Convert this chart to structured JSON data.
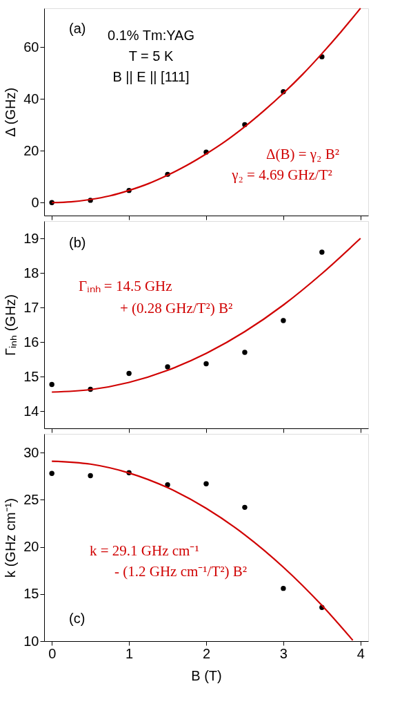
{
  "chart_data": [
    {
      "type": "scatter",
      "ylabel": "Δ (GHz)",
      "xlim": [
        -0.1,
        4.1
      ],
      "xticks": [
        0,
        1,
        2,
        3,
        4
      ],
      "ylim": [
        -5,
        75
      ],
      "yticks": [
        0,
        20,
        40,
        60
      ],
      "tick_labels": "y",
      "grid": false,
      "annotations": [
        "(a)",
        "0.1% Tm:YAG",
        "T = 5 K",
        "B || E || [111]",
        "Δ(B) = γ₂ B²",
        "γ₂ = 4.69 GHz/T²"
      ],
      "series": [
        {
          "color": "#000000",
          "marker": "circle",
          "x": [
            0,
            0.5,
            1,
            1.5,
            2,
            2.5,
            3,
            3.5
          ],
          "values": [
            0,
            0.9,
            4.7,
            10.9,
            19.5,
            30.1,
            42.8,
            56.3
          ]
        },
        {
          "type": "line",
          "color": "#d00000",
          "marker": "none",
          "line_style": "solid",
          "x": [
            0,
            0.25,
            0.5,
            0.75,
            1,
            1.25,
            1.5,
            1.75,
            2,
            2.25,
            2.5,
            2.75,
            3,
            3.25,
            3.5,
            3.75,
            4
          ],
          "values": [
            0,
            0.3,
            1.2,
            2.6,
            4.7,
            7.3,
            10.6,
            14.4,
            18.8,
            23.7,
            29.3,
            35.5,
            42.2,
            49.5,
            57.5,
            66.0,
            75.0
          ]
        }
      ]
    },
    {
      "type": "scatter",
      "ylabel": "Γᵢₙₕ (GHz)",
      "xlim": [
        -0.1,
        4.1
      ],
      "xticks": [
        0,
        1,
        2,
        3,
        4
      ],
      "ylim": [
        13.5,
        19.5
      ],
      "yticks": [
        14,
        15,
        16,
        17,
        18,
        19
      ],
      "tick_labels": "y",
      "grid": false,
      "annotations": [
        "(b)",
        "Γᵢₙₕ = 14.5 GHz",
        "+ (0.28 GHz/T²) B²"
      ],
      "series": [
        {
          "color": "#000000",
          "marker": "circle",
          "x": [
            0,
            0.5,
            1,
            1.5,
            2,
            2.5,
            3,
            3.5
          ],
          "values": [
            14.77,
            14.63,
            15.09,
            15.28,
            15.37,
            15.7,
            16.62,
            18.6
          ]
        },
        {
          "type": "line",
          "color": "#d00000",
          "marker": "none",
          "line_style": "solid",
          "x": [
            0,
            0.5,
            1,
            1.5,
            2,
            2.5,
            3,
            3.5,
            4
          ],
          "values": [
            14.55,
            14.62,
            14.83,
            15.18,
            15.67,
            16.3,
            17.07,
            17.98,
            19.0
          ]
        }
      ]
    },
    {
      "type": "scatter",
      "xlabel": "B (T)",
      "ylabel": "k (GHz cm⁻¹)",
      "xlim": [
        -0.1,
        4.1
      ],
      "xticks": [
        0,
        1,
        2,
        3,
        4
      ],
      "ylim": [
        10,
        32
      ],
      "yticks": [
        10,
        15,
        20,
        25,
        30
      ],
      "grid": false,
      "annotations": [
        "(c)",
        "k = 29.1 GHz cm⁻¹",
        "- (1.2 GHz cm⁻¹/T²) B²"
      ],
      "series": [
        {
          "color": "#000000",
          "marker": "circle",
          "x": [
            0,
            0.5,
            1,
            1.5,
            2,
            2.5,
            3,
            3.5
          ],
          "values": [
            27.8,
            27.56,
            27.88,
            26.6,
            26.7,
            24.2,
            15.6,
            13.58
          ]
        },
        {
          "type": "line",
          "color": "#d00000",
          "marker": "none",
          "line_style": "solid",
          "x": [
            0,
            0.5,
            1,
            1.5,
            2,
            2.5,
            3,
            3.5,
            3.9
          ],
          "values": [
            29.1,
            28.79,
            27.85,
            26.29,
            24.1,
            21.29,
            17.85,
            13.79,
            10.09
          ]
        }
      ]
    }
  ]
}
